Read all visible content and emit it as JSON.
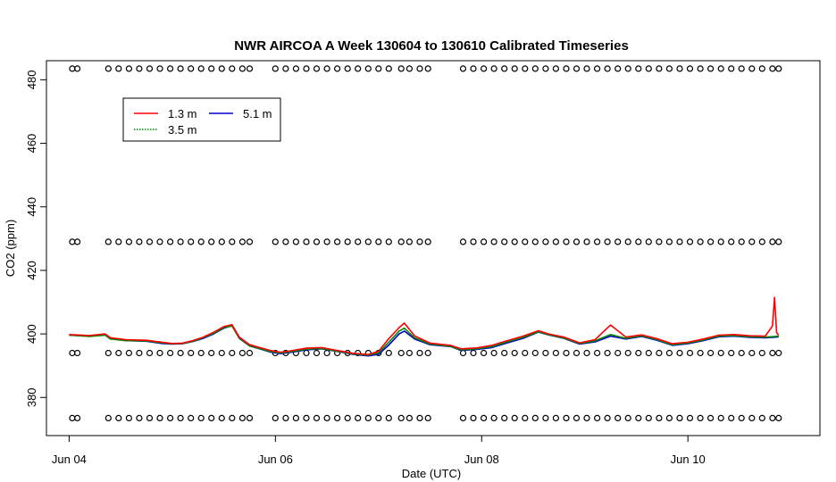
{
  "chart_data": {
    "type": "line",
    "title": "NWR AIRCOA A  Week 130604 to 130610  Calibrated Timeseries",
    "xlabel": "Date (UTC)",
    "ylabel": "CO2 (ppm)",
    "x_unit": "days (Jun 04 = 4.0)",
    "xlim": [
      3.78,
      11.28
    ],
    "ylim": [
      368,
      486
    ],
    "x_ticks": [
      {
        "value": 4,
        "label": "Jun 04"
      },
      {
        "value": 6,
        "label": "Jun 06"
      },
      {
        "value": 8,
        "label": "Jun 08"
      },
      {
        "value": 10,
        "label": "Jun 10"
      }
    ],
    "y_ticks": [
      380,
      400,
      420,
      440,
      460,
      480
    ],
    "legend": {
      "placement": "top-left",
      "entries": [
        {
          "label": "1.3 m",
          "color": "#ff0000",
          "style": "solid"
        },
        {
          "label": "3.5 m",
          "color": "#008800",
          "style": "dotted"
        },
        {
          "label": "5.1 m",
          "color": "#0000cc",
          "style": "solid"
        }
      ]
    },
    "series": [
      {
        "name": "5.1 m",
        "color": "#0000cc",
        "x": [
          4.0,
          4.2,
          4.35,
          4.4,
          4.55,
          4.75,
          4.9,
          5.0,
          5.1,
          5.2,
          5.3,
          5.4,
          5.5,
          5.58,
          5.65,
          5.75,
          5.85,
          5.95,
          6.05,
          6.15,
          6.3,
          6.45,
          6.6,
          6.75,
          6.9,
          7.0,
          7.1,
          7.2,
          7.25,
          7.35,
          7.5,
          7.7,
          7.8,
          7.95,
          8.1,
          8.25,
          8.4,
          8.55,
          8.65,
          8.8,
          8.95,
          9.1,
          9.25,
          9.4,
          9.55,
          9.7,
          9.85,
          10.0,
          10.15,
          10.3,
          10.45,
          10.6,
          10.75,
          10.85,
          10.88
        ],
        "values": [
          399.6,
          399.3,
          399.8,
          398.5,
          397.9,
          397.7,
          397.0,
          396.8,
          396.9,
          397.6,
          398.6,
          400.0,
          401.8,
          402.6,
          398.6,
          396.2,
          395.3,
          394.3,
          393.8,
          394.2,
          395.0,
          395.3,
          394.5,
          393.6,
          393.1,
          393.6,
          396.5,
          400.0,
          400.9,
          398.4,
          396.6,
          396.0,
          394.8,
          395.1,
          395.7,
          397.2,
          398.6,
          400.6,
          399.7,
          398.6,
          396.8,
          397.5,
          399.3,
          398.4,
          399.2,
          398.0,
          396.4,
          396.9,
          397.9,
          399.1,
          399.3,
          398.9,
          398.8,
          399.0,
          399.1
        ]
      },
      {
        "name": "3.5 m",
        "color": "#008800",
        "x": [
          4.0,
          4.2,
          4.35,
          4.4,
          4.55,
          4.75,
          4.9,
          5.0,
          5.1,
          5.2,
          5.3,
          5.4,
          5.5,
          5.58,
          5.65,
          5.75,
          5.85,
          5.95,
          6.05,
          6.15,
          6.3,
          6.45,
          6.6,
          6.75,
          6.9,
          7.0,
          7.1,
          7.2,
          7.25,
          7.35,
          7.5,
          7.7,
          7.8,
          7.95,
          8.1,
          8.25,
          8.4,
          8.55,
          8.65,
          8.8,
          8.95,
          9.1,
          9.25,
          9.4,
          9.55,
          9.7,
          9.85,
          10.0,
          10.15,
          10.3,
          10.45,
          10.6,
          10.75,
          10.85,
          10.88
        ],
        "values": [
          399.6,
          399.2,
          399.6,
          398.4,
          397.9,
          397.8,
          397.2,
          396.9,
          397.0,
          397.7,
          398.8,
          400.2,
          402.0,
          402.5,
          398.7,
          396.3,
          395.4,
          394.5,
          394.0,
          394.4,
          395.2,
          395.4,
          394.6,
          393.7,
          393.3,
          394.0,
          397.4,
          400.9,
          401.8,
          398.8,
          396.8,
          396.1,
          395.0,
          395.3,
          396.0,
          397.5,
          398.9,
          400.7,
          399.8,
          398.7,
          397.0,
          397.8,
          399.8,
          398.6,
          399.4,
          398.2,
          396.6,
          397.1,
          398.1,
          399.3,
          399.5,
          399.1,
          399.0,
          399.2,
          399.3
        ]
      },
      {
        "name": "1.3 m",
        "color": "#ff0000",
        "x": [
          4.0,
          4.2,
          4.35,
          4.4,
          4.55,
          4.75,
          4.9,
          5.0,
          5.1,
          5.2,
          5.3,
          5.4,
          5.5,
          5.58,
          5.65,
          5.75,
          5.85,
          5.95,
          6.05,
          6.15,
          6.3,
          6.45,
          6.6,
          6.75,
          6.9,
          7.0,
          7.1,
          7.2,
          7.25,
          7.35,
          7.5,
          7.7,
          7.8,
          7.95,
          8.1,
          8.25,
          8.4,
          8.55,
          8.65,
          8.8,
          8.95,
          9.1,
          9.25,
          9.4,
          9.55,
          9.7,
          9.85,
          10.0,
          10.15,
          10.3,
          10.45,
          10.6,
          10.75,
          10.82,
          10.84,
          10.86,
          10.88
        ],
        "values": [
          399.8,
          399.5,
          400.0,
          398.8,
          398.2,
          398.0,
          397.4,
          397.0,
          397.1,
          397.9,
          399.0,
          400.5,
          402.3,
          402.9,
          399.0,
          396.6,
          395.7,
          394.8,
          394.2,
          394.7,
          395.5,
          395.7,
          394.8,
          393.9,
          393.5,
          394.5,
          398.5,
          402.0,
          403.4,
          399.4,
          397.1,
          396.4,
          395.3,
          395.6,
          396.4,
          397.9,
          399.3,
          401.0,
          400.0,
          399.0,
          397.2,
          398.2,
          402.8,
          399.0,
          399.7,
          398.5,
          396.9,
          397.4,
          398.4,
          399.6,
          399.8,
          399.4,
          399.3,
          402.5,
          411.5,
          400.4,
          399.6
        ]
      },
      {
        "name": "markers",
        "marker": "circle",
        "levels": [
          373.5,
          394,
          429,
          483.5
        ],
        "x": [
          4.03,
          4.08,
          4.38,
          4.48,
          4.58,
          4.68,
          4.78,
          4.88,
          4.98,
          5.08,
          5.18,
          5.28,
          5.38,
          5.48,
          5.58,
          5.68,
          5.75,
          6.0,
          6.1,
          6.2,
          6.3,
          6.4,
          6.5,
          6.6,
          6.7,
          6.8,
          6.9,
          7.0,
          7.1,
          7.22,
          7.3,
          7.4,
          7.48,
          7.82,
          7.92,
          8.02,
          8.12,
          8.22,
          8.32,
          8.42,
          8.52,
          8.62,
          8.72,
          8.82,
          8.92,
          9.02,
          9.12,
          9.22,
          9.32,
          9.42,
          9.52,
          9.62,
          9.72,
          9.82,
          9.92,
          10.02,
          10.12,
          10.22,
          10.32,
          10.42,
          10.52,
          10.62,
          10.72,
          10.82,
          10.88
        ]
      }
    ]
  }
}
